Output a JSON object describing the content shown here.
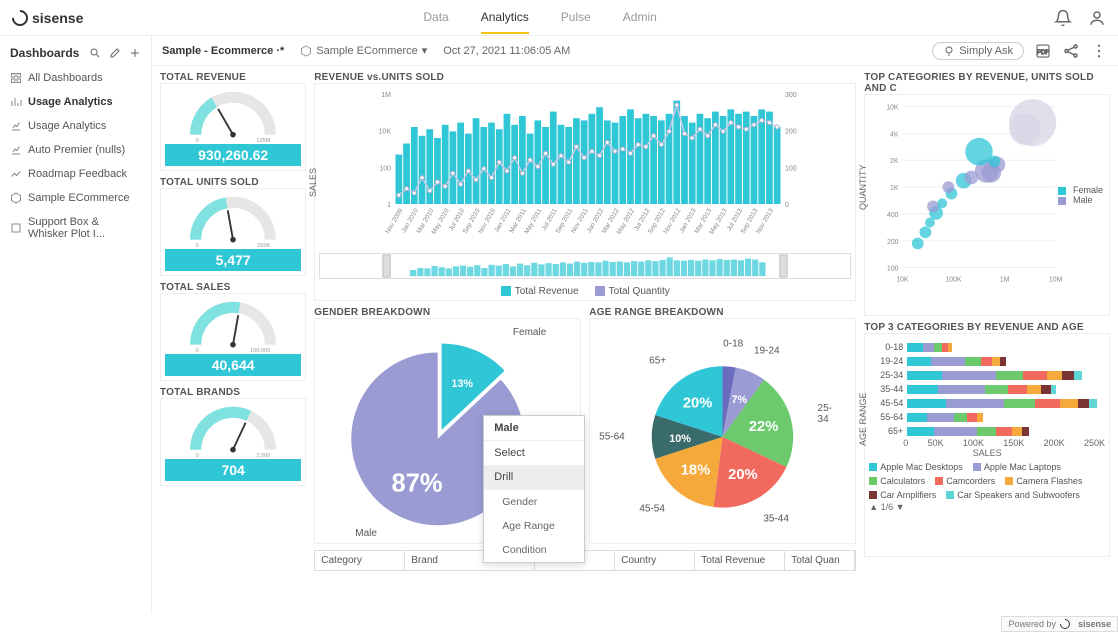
{
  "brand": "sisense",
  "topnav": [
    "Data",
    "Analytics",
    "Pulse",
    "Admin"
  ],
  "topnav_active": 1,
  "sidebar": {
    "header": "Dashboards",
    "items": [
      {
        "icon": "grid",
        "label": "All Dashboards"
      },
      {
        "icon": "bars",
        "label": "Usage Analytics",
        "active": true
      },
      {
        "icon": "chart",
        "label": "Usage Analytics"
      },
      {
        "icon": "chart",
        "label": "Auto Premier (nulls)"
      },
      {
        "icon": "line",
        "label": "Roadmap Feedback"
      },
      {
        "icon": "cube",
        "label": "Sample ECommerce"
      },
      {
        "icon": "box",
        "label": "Support Box & Whisker Plot I..."
      }
    ]
  },
  "breadcrumb": {
    "title": "Sample - Ecommerce ·*",
    "source": "Sample ECommerce",
    "timestamp": "Oct 27, 2021 11:06:05 AM",
    "simply_ask": "Simply Ask"
  },
  "kpis": [
    {
      "title": "TOTAL REVENUE",
      "value": "930,260.62",
      "max": "125M",
      "angle": -30
    },
    {
      "title": "TOTAL UNITS SOLD",
      "value": "5,477",
      "max": "250K",
      "angle": -10
    },
    {
      "title": "TOTAL SALES",
      "value": "40,644",
      "max": "100,000",
      "angle": 10
    },
    {
      "title": "TOTAL BRANDS",
      "value": "704",
      "max": "2,500",
      "angle": 25
    }
  ],
  "gauge": {
    "bg": "#e6e6e6",
    "fill": "#7fe2e0",
    "needle": "#333"
  },
  "kpi_val_bg": "#2fc6d6",
  "combo": {
    "title": "REVENUE vs.UNITS SOLD",
    "y_left_label": "SALES",
    "y_left_ticks": [
      "1M",
      "10K",
      "100",
      "1"
    ],
    "y_right_ticks": [
      "300",
      "200",
      "100",
      "0"
    ],
    "bar_color": "#2fc6d6",
    "line_color": "#c9c9e6",
    "marker_color": "#ffffff",
    "marker_stroke": "#b0b0d0",
    "x_labels": [
      "Nov 2009",
      "Jan 2010",
      "Mar 2010",
      "May 2010",
      "Jul 2010",
      "Sep 2010",
      "Nov 2010",
      "Jan 2011",
      "Mar 2011",
      "May 2011",
      "Jul 2011",
      "Sep 2011",
      "Nov 2011",
      "Jan 2012",
      "Mar 2012",
      "May 2012",
      "Jul 2012",
      "Sep 2012",
      "Nov 2012",
      "Jan 2013",
      "Mar 2013",
      "May 2013",
      "Jul 2013",
      "Sep 2013",
      "Nov 2013"
    ],
    "bars": [
      45,
      55,
      70,
      62,
      68,
      60,
      72,
      66,
      74,
      64,
      78,
      70,
      74,
      68,
      82,
      72,
      80,
      64,
      76,
      70,
      84,
      72,
      70,
      78,
      76,
      82,
      88,
      76,
      74,
      80,
      86,
      78,
      82,
      80,
      76,
      82,
      94,
      80,
      74,
      82,
      78,
      84,
      80,
      86,
      82,
      84,
      80,
      86,
      84,
      70
    ],
    "line": [
      8,
      14,
      10,
      24,
      12,
      20,
      16,
      28,
      18,
      30,
      22,
      32,
      24,
      38,
      30,
      42,
      28,
      40,
      34,
      46,
      36,
      44,
      38,
      52,
      42,
      48,
      44,
      56,
      48,
      50,
      46,
      54,
      52,
      62,
      54,
      66,
      90,
      64,
      60,
      68,
      62,
      72,
      66,
      74,
      70,
      68,
      72,
      76,
      74,
      70
    ],
    "brush": [
      30,
      40,
      38,
      50,
      44,
      38,
      48,
      52,
      46,
      54,
      40,
      56,
      52,
      60,
      48,
      62,
      54,
      66,
      58,
      64,
      60,
      68,
      62,
      72,
      66,
      70,
      68,
      76,
      70,
      72,
      68,
      74,
      72,
      78,
      74,
      80,
      92,
      78,
      76,
      80,
      76,
      82,
      78,
      84,
      80,
      82,
      78,
      86,
      82,
      68
    ],
    "legend": [
      {
        "color": "#2fc6d6",
        "label": "Total Revenue"
      },
      {
        "color": "#9b9bd4",
        "label": "Total Quantity"
      }
    ]
  },
  "gender": {
    "title": "GENDER BREAKDOWN",
    "slices": [
      {
        "label": "Female",
        "pct": 13,
        "color": "#2fc6d6",
        "pulled": true
      },
      {
        "label": "Male",
        "pct": 87,
        "color": "#9b9bd4"
      }
    ]
  },
  "age": {
    "title": "AGE RANGE BREAKDOWN",
    "slices": [
      {
        "label": "0-18",
        "pct": 3,
        "color": "#6b6bbf"
      },
      {
        "label": "19-24",
        "pct": 7,
        "color": "#9b9bd4"
      },
      {
        "label": "25-34",
        "pct": 22,
        "color": "#6cc96c"
      },
      {
        "label": "35-44",
        "pct": 20,
        "color": "#f26a5e"
      },
      {
        "label": "45-54",
        "pct": 18,
        "color": "#f6a93b"
      },
      {
        "label": "55-64",
        "pct": 10,
        "color": "#3a6b6b"
      },
      {
        "label": "65+",
        "pct": 20,
        "color": "#2fc6d6"
      }
    ]
  },
  "context_menu": {
    "target": "Male",
    "items": [
      "Select",
      "Drill"
    ],
    "sub": [
      "Gender",
      "Age Range",
      "Condition"
    ],
    "highlight": 1
  },
  "scatter": {
    "title": "TOP CATEGORIES BY REVENUE, UNITS SOLD AND C",
    "x_label_hidden": "",
    "y_label": "QUANTITY",
    "x_ticks": [
      "10K",
      "100K",
      "1M",
      "10M"
    ],
    "y_ticks": [
      "10K",
      "4K",
      "2K",
      "1K",
      "400",
      "200",
      "100"
    ],
    "legend": [
      {
        "color": "#2fc6d6",
        "label": "Female"
      },
      {
        "color": "#9b9bd4",
        "label": "Male"
      }
    ],
    "points": [
      {
        "x": 0.1,
        "y": 0.85,
        "r": 6,
        "c": "#2fc6d6"
      },
      {
        "x": 0.15,
        "y": 0.78,
        "r": 6,
        "c": "#2fc6d6"
      },
      {
        "x": 0.18,
        "y": 0.72,
        "r": 5,
        "c": "#2fc6d6"
      },
      {
        "x": 0.22,
        "y": 0.66,
        "r": 7,
        "c": "#2fc6d6"
      },
      {
        "x": 0.2,
        "y": 0.62,
        "r": 6,
        "c": "#9b9bd4"
      },
      {
        "x": 0.26,
        "y": 0.6,
        "r": 5,
        "c": "#2fc6d6"
      },
      {
        "x": 0.32,
        "y": 0.54,
        "r": 6,
        "c": "#2fc6d6"
      },
      {
        "x": 0.3,
        "y": 0.5,
        "r": 6,
        "c": "#9b9bd4"
      },
      {
        "x": 0.4,
        "y": 0.46,
        "r": 8,
        "c": "#2fc6d6"
      },
      {
        "x": 0.45,
        "y": 0.44,
        "r": 7,
        "c": "#9b9bd4"
      },
      {
        "x": 0.55,
        "y": 0.4,
        "r": 12,
        "c": "#9b9bd4"
      },
      {
        "x": 0.58,
        "y": 0.41,
        "r": 10,
        "c": "#9b9bd4"
      },
      {
        "x": 0.62,
        "y": 0.36,
        "r": 8,
        "c": "#9b9bd4"
      },
      {
        "x": 0.6,
        "y": 0.34,
        "r": 6,
        "c": "#2fc6d6"
      },
      {
        "x": 0.5,
        "y": 0.28,
        "r": 14,
        "c": "#2fc6d6"
      },
      {
        "x": 0.85,
        "y": 0.1,
        "r": 24,
        "c": "#d6d6e6"
      },
      {
        "x": 0.8,
        "y": 0.14,
        "r": 16,
        "c": "#d6d6e6"
      }
    ]
  },
  "stacked": {
    "title": "TOP 3 CATEGORIES BY REVENUE AND AGE",
    "y_label": "AGE RANGE",
    "x_label": "SALES",
    "x_ticks": [
      "0",
      "50K",
      "100K",
      "150K",
      "200K",
      "250K"
    ],
    "rows": [
      {
        "label": "0-18",
        "segs": [
          [
            "#2fc6d6",
            8
          ],
          [
            "#9b9bd4",
            6
          ],
          [
            "#6cc96c",
            4
          ],
          [
            "#f26a5e",
            3
          ],
          [
            "#f6a93b",
            2
          ]
        ]
      },
      {
        "label": "19-24",
        "segs": [
          [
            "#2fc6d6",
            12
          ],
          [
            "#9b9bd4",
            18
          ],
          [
            "#6cc96c",
            8
          ],
          [
            "#f26a5e",
            6
          ],
          [
            "#f6a93b",
            4
          ],
          [
            "#7a3434",
            3
          ]
        ]
      },
      {
        "label": "25-34",
        "segs": [
          [
            "#2fc6d6",
            18
          ],
          [
            "#9b9bd4",
            28
          ],
          [
            "#6cc96c",
            14
          ],
          [
            "#f26a5e",
            12
          ],
          [
            "#f6a93b",
            8
          ],
          [
            "#7a3434",
            6
          ],
          [
            "#5fd6d6",
            4
          ]
        ]
      },
      {
        "label": "35-44",
        "segs": [
          [
            "#2fc6d6",
            16
          ],
          [
            "#9b9bd4",
            24
          ],
          [
            "#6cc96c",
            12
          ],
          [
            "#f26a5e",
            10
          ],
          [
            "#f6a93b",
            7
          ],
          [
            "#7a3434",
            5
          ],
          [
            "#5fd6d6",
            3
          ]
        ]
      },
      {
        "label": "45-54",
        "segs": [
          [
            "#2fc6d6",
            20
          ],
          [
            "#9b9bd4",
            30
          ],
          [
            "#6cc96c",
            16
          ],
          [
            "#f26a5e",
            13
          ],
          [
            "#f6a93b",
            9
          ],
          [
            "#7a3434",
            6
          ],
          [
            "#5fd6d6",
            4
          ]
        ]
      },
      {
        "label": "55-64",
        "segs": [
          [
            "#2fc6d6",
            10
          ],
          [
            "#9b9bd4",
            14
          ],
          [
            "#6cc96c",
            7
          ],
          [
            "#f26a5e",
            5
          ],
          [
            "#f6a93b",
            3
          ]
        ]
      },
      {
        "label": "65+",
        "segs": [
          [
            "#2fc6d6",
            14
          ],
          [
            "#9b9bd4",
            22
          ],
          [
            "#6cc96c",
            10
          ],
          [
            "#f26a5e",
            8
          ],
          [
            "#f6a93b",
            5
          ],
          [
            "#7a3434",
            4
          ]
        ]
      }
    ],
    "legend": [
      {
        "color": "#2fc6d6",
        "label": "Apple Mac Desktops"
      },
      {
        "color": "#9b9bd4",
        "label": "Apple Mac Laptops"
      },
      {
        "color": "#6cc96c",
        "label": "Calculators"
      },
      {
        "color": "#f26a5e",
        "label": "Camcorders"
      },
      {
        "color": "#f6a93b",
        "label": "Camera Flashes"
      },
      {
        "color": "#7a3434",
        "label": "Car Amplifiers"
      },
      {
        "color": "#5fd6d6",
        "label": "Car Speakers and Subwoofers"
      }
    ],
    "pager": "▲ 1/6 ▼"
  },
  "table": {
    "columns": [
      "Category",
      "Brand",
      "Condition",
      "Country",
      "Total Revenue",
      "Total Quan"
    ]
  },
  "footer": "Powered by",
  "footer_brand": "sisense"
}
